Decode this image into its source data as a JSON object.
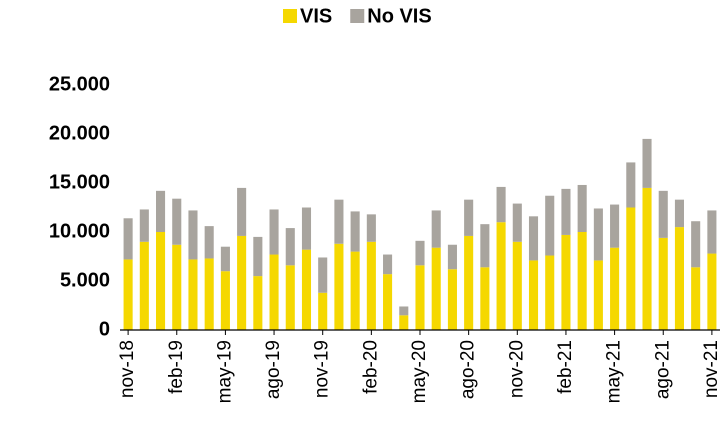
{
  "chart_data": {
    "type": "bar",
    "stacked": true,
    "categories": [
      "nov-18",
      null,
      null,
      "feb-19",
      null,
      null,
      "may-19",
      null,
      null,
      "ago-19",
      null,
      null,
      "nov-19",
      null,
      null,
      "feb-20",
      null,
      null,
      "may-20",
      null,
      null,
      "ago-20",
      null,
      null,
      "nov-20",
      null,
      null,
      "feb-21",
      null,
      null,
      "may-21",
      null,
      null,
      "ago-21",
      null,
      null,
      "nov-21"
    ],
    "series": [
      {
        "name": "VIS",
        "color": "#f5d800",
        "values": [
          7200,
          9000,
          10000,
          8700,
          7200,
          7300,
          6000,
          9600,
          5500,
          7700,
          6600,
          8200,
          3800,
          8800,
          8000,
          9000,
          5700,
          1500,
          6600,
          8400,
          6200,
          9600,
          6400,
          11000,
          9000,
          7100,
          7600,
          9700,
          10000,
          7100,
          8400,
          12500,
          14500,
          9400,
          10500,
          6400,
          7800
        ]
      },
      {
        "name": "No VIS",
        "color": "#a8a49e",
        "values": [
          4200,
          3300,
          4200,
          4700,
          5000,
          3300,
          2500,
          4900,
          4000,
          4600,
          3800,
          4300,
          3600,
          4500,
          4100,
          2800,
          2000,
          900,
          2500,
          3800,
          2500,
          3700,
          4400,
          3600,
          3900,
          4500,
          6100,
          4700,
          4800,
          5300,
          4400,
          4600,
          5000,
          4800,
          2800,
          4700,
          4400
        ]
      }
    ],
    "ylim": [
      0,
      25000
    ],
    "yticks": [
      0,
      {
        "value": 5000,
        "label": "5.000"
      },
      {
        "value": 10000,
        "label": "10.000"
      },
      {
        "value": 15000,
        "label": "15.000"
      },
      {
        "value": 20000,
        "label": "20.000"
      },
      {
        "value": 25000,
        "label": "25.000"
      }
    ],
    "legend": "top"
  }
}
